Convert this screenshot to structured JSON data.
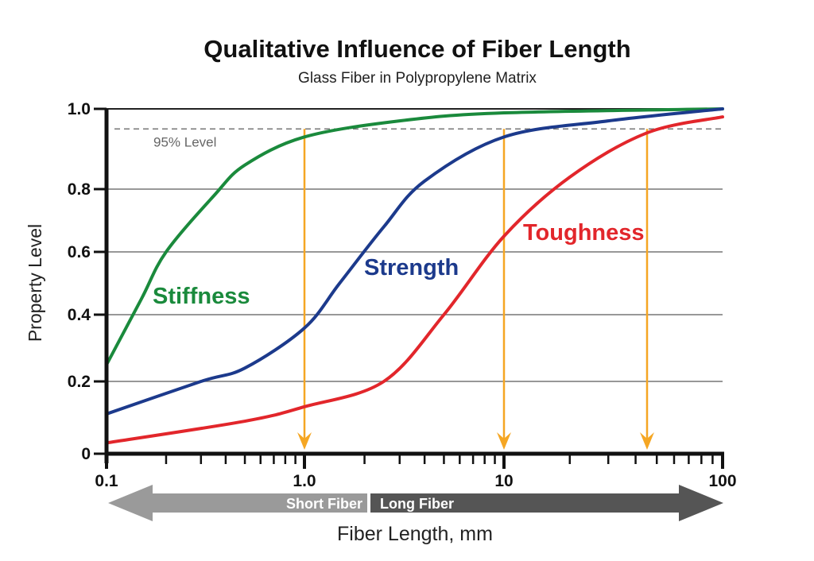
{
  "chart_data": {
    "type": "line",
    "title": "Qualitative Influence of Fiber Length",
    "subtitle": "Glass Fiber in Polypropylene Matrix",
    "xlabel": "Fiber Length, mm",
    "ylabel": "Property Level",
    "xscale": "log",
    "xlim": [
      0.1,
      100
    ],
    "ylim": [
      0,
      1.0
    ],
    "x_tick_labels": [
      "0.1",
      "1.0",
      "10",
      "100"
    ],
    "y_tick_labels": [
      "0",
      "0.2",
      "0.4",
      "0.6",
      "0.8",
      "1.0"
    ],
    "grid": "horizontal",
    "reference_line": {
      "y": 0.95,
      "label": "95% Level"
    },
    "threshold_arrows_x": [
      1.0,
      10,
      40
    ],
    "arrow_color": "#f5a623",
    "series": [
      {
        "name": "Stiffness",
        "color": "#1a8a3c",
        "x": [
          0.1,
          0.15,
          0.2,
          0.35,
          0.5,
          1.0,
          3,
          10,
          100
        ],
        "y": [
          0.25,
          0.45,
          0.6,
          0.78,
          0.86,
          0.93,
          0.97,
          0.99,
          1.0
        ]
      },
      {
        "name": "Strength",
        "color": "#1c3a8c",
        "x": [
          0.1,
          0.3,
          0.5,
          1.0,
          1.5,
          2.5,
          4,
          10,
          30,
          100
        ],
        "y": [
          0.11,
          0.2,
          0.24,
          0.36,
          0.5,
          0.68,
          0.82,
          0.93,
          0.97,
          1.0
        ]
      },
      {
        "name": "Toughness",
        "color": "#e2262b",
        "x": [
          0.1,
          0.5,
          1.0,
          2.5,
          5,
          10,
          20,
          45,
          100
        ],
        "y": [
          0.03,
          0.09,
          0.13,
          0.2,
          0.4,
          0.65,
          0.83,
          0.94,
          0.98
        ]
      }
    ],
    "range_arrow": {
      "left_label": "Short Fiber",
      "right_label": "Long Fiber"
    }
  }
}
